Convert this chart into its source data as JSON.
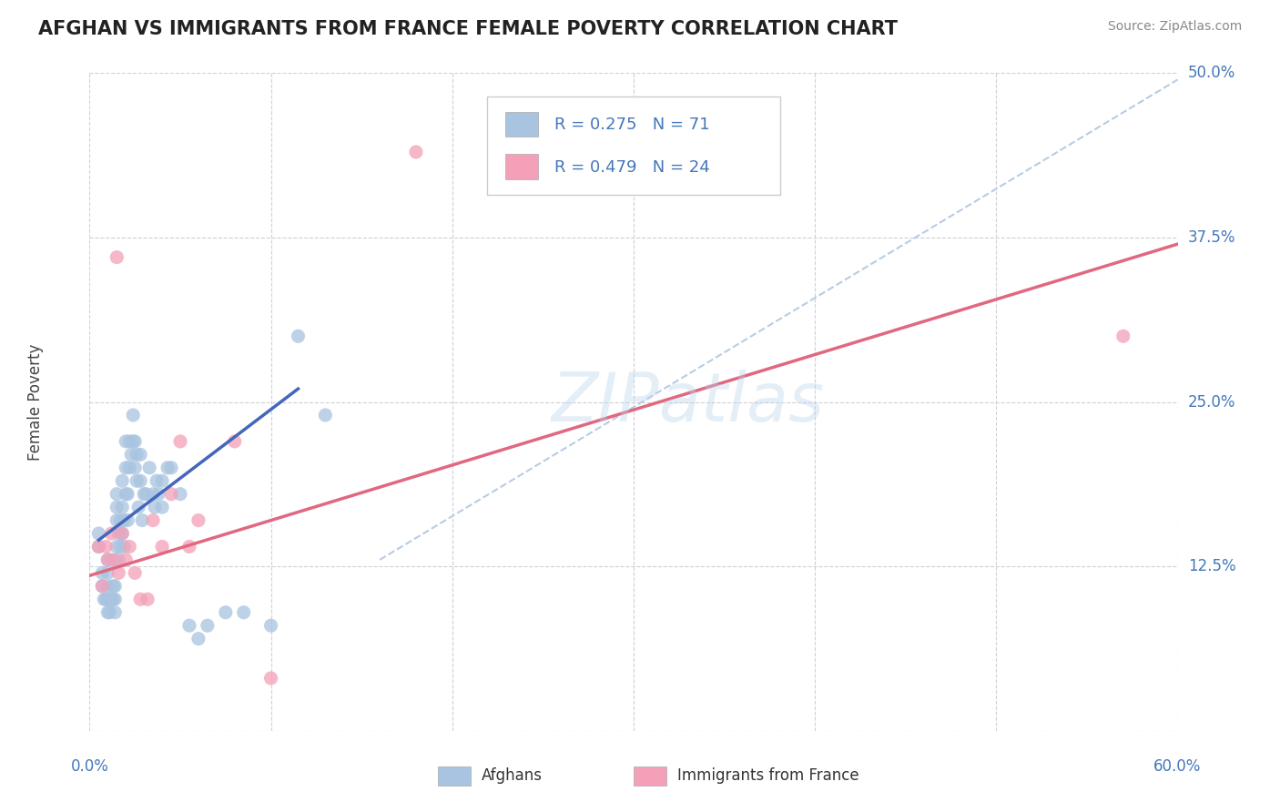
{
  "title": "AFGHAN VS IMMIGRANTS FROM FRANCE FEMALE POVERTY CORRELATION CHART",
  "source": "Source: ZipAtlas.com",
  "ylabel": "Female Poverty",
  "xlim": [
    0.0,
    0.6
  ],
  "ylim": [
    0.0,
    0.5
  ],
  "xticks": [
    0.0,
    0.1,
    0.2,
    0.3,
    0.4,
    0.5,
    0.6
  ],
  "yticks": [
    0.0,
    0.125,
    0.25,
    0.375,
    0.5
  ],
  "watermark": "ZIPatlas",
  "background_color": "#ffffff",
  "grid_color": "#d0d0d8",
  "afghan_color": "#a8c4e0",
  "france_color": "#f4a0b8",
  "afghan_line_color": "#4466bb",
  "france_line_color": "#e06880",
  "diag_line_color": "#b8cce4",
  "legend_r1": "R = 0.275",
  "legend_n1": "N = 71",
  "legend_r2": "R = 0.479",
  "legend_n2": "N = 24",
  "afghan_label": "Afghans",
  "france_label": "Immigrants from France",
  "afghan_points_x": [
    0.005,
    0.005,
    0.007,
    0.007,
    0.008,
    0.009,
    0.01,
    0.01,
    0.01,
    0.01,
    0.01,
    0.011,
    0.011,
    0.012,
    0.012,
    0.013,
    0.013,
    0.014,
    0.014,
    0.014,
    0.015,
    0.015,
    0.015,
    0.015,
    0.016,
    0.016,
    0.017,
    0.017,
    0.018,
    0.018,
    0.018,
    0.019,
    0.019,
    0.02,
    0.02,
    0.02,
    0.021,
    0.021,
    0.022,
    0.022,
    0.023,
    0.024,
    0.024,
    0.025,
    0.025,
    0.026,
    0.026,
    0.027,
    0.028,
    0.028,
    0.029,
    0.03,
    0.031,
    0.033,
    0.035,
    0.036,
    0.037,
    0.038,
    0.04,
    0.04,
    0.043,
    0.045,
    0.05,
    0.055,
    0.06,
    0.065,
    0.075,
    0.085,
    0.1,
    0.115,
    0.13
  ],
  "afghan_points_y": [
    0.14,
    0.15,
    0.11,
    0.12,
    0.1,
    0.1,
    0.09,
    0.1,
    0.11,
    0.12,
    0.13,
    0.09,
    0.1,
    0.1,
    0.13,
    0.1,
    0.11,
    0.09,
    0.1,
    0.11,
    0.14,
    0.16,
    0.17,
    0.18,
    0.13,
    0.15,
    0.14,
    0.16,
    0.15,
    0.17,
    0.19,
    0.14,
    0.16,
    0.18,
    0.2,
    0.22,
    0.16,
    0.18,
    0.2,
    0.22,
    0.21,
    0.22,
    0.24,
    0.2,
    0.22,
    0.19,
    0.21,
    0.17,
    0.19,
    0.21,
    0.16,
    0.18,
    0.18,
    0.2,
    0.18,
    0.17,
    0.19,
    0.18,
    0.17,
    0.19,
    0.2,
    0.2,
    0.18,
    0.08,
    0.07,
    0.08,
    0.09,
    0.09,
    0.08,
    0.3,
    0.24
  ],
  "france_points_x": [
    0.005,
    0.007,
    0.009,
    0.01,
    0.012,
    0.014,
    0.015,
    0.016,
    0.018,
    0.02,
    0.022,
    0.025,
    0.028,
    0.032,
    0.035,
    0.04,
    0.045,
    0.05,
    0.055,
    0.06,
    0.08,
    0.1,
    0.18,
    0.57
  ],
  "france_points_y": [
    0.14,
    0.11,
    0.14,
    0.13,
    0.15,
    0.13,
    0.36,
    0.12,
    0.15,
    0.13,
    0.14,
    0.12,
    0.1,
    0.1,
    0.16,
    0.14,
    0.18,
    0.22,
    0.14,
    0.16,
    0.22,
    0.04,
    0.44,
    0.3
  ],
  "afghan_trendline_x": [
    0.005,
    0.115
  ],
  "afghan_trendline_y": [
    0.145,
    0.26
  ],
  "france_trendline_x": [
    0.0,
    0.6
  ],
  "france_trendline_y": [
    0.118,
    0.37
  ],
  "diag_line_x": [
    0.16,
    0.6
  ],
  "diag_line_y": [
    0.13,
    0.495
  ]
}
